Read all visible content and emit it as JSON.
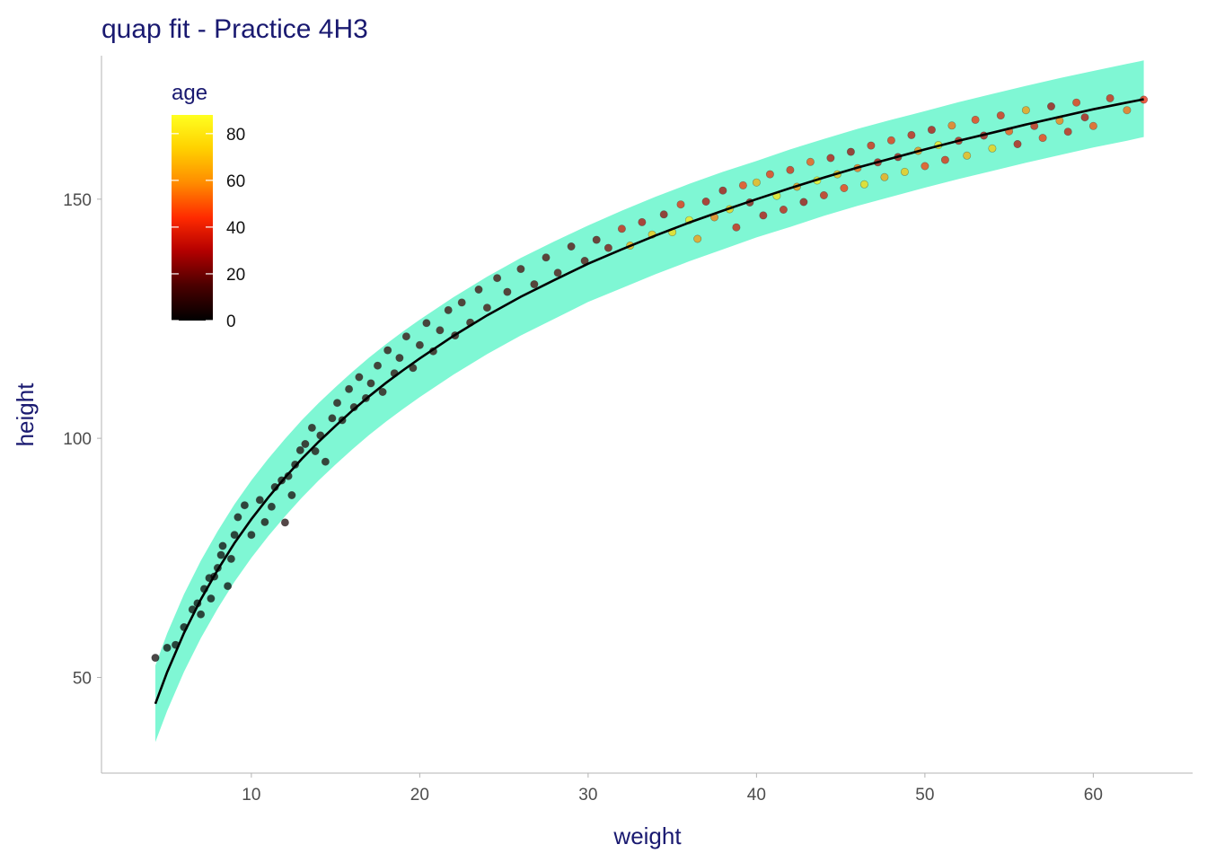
{
  "chart_data": {
    "type": "scatter",
    "title": "quap fit - Practice 4H3",
    "xlabel": "weight",
    "ylabel": "height",
    "xlim": [
      1.1,
      65.9
    ],
    "ylim": [
      30,
      180
    ],
    "xticks": [
      10,
      20,
      30,
      40,
      50,
      60
    ],
    "yticks": [
      50,
      100,
      150
    ],
    "grid": false,
    "legend": {
      "title": "age",
      "placement": "top-left",
      "ticks": [
        0,
        20,
        40,
        60,
        80
      ],
      "range": [
        0,
        88
      ],
      "gradient_colors": [
        "#000000",
        "#4a0000",
        "#b40000",
        "#ff2a00",
        "#ff8c00",
        "#ffd200",
        "#ffff20"
      ]
    },
    "band_color": "#7ff7d4",
    "line_color": "#000000",
    "fit": {
      "x": [
        4.3,
        5,
        6,
        7,
        8,
        9,
        10,
        11,
        12,
        13,
        14,
        15,
        16,
        17,
        18,
        19,
        20,
        22,
        24,
        26,
        28,
        30,
        32,
        34,
        36,
        38,
        40,
        42,
        44,
        46,
        48,
        50,
        52,
        54,
        56,
        58,
        60,
        62,
        63
      ],
      "mean": [
        44.5,
        51.1,
        59.3,
        66.3,
        72.5,
        78.1,
        83.1,
        87.6,
        91.8,
        95.7,
        99.3,
        102.6,
        105.8,
        108.8,
        111.6,
        114.2,
        116.7,
        121.4,
        125.7,
        129.6,
        133.1,
        136.5,
        139.5,
        142.4,
        145.1,
        147.6,
        150.0,
        152.3,
        154.5,
        156.6,
        158.5,
        160.4,
        162.2,
        163.9,
        165.6,
        167.2,
        168.8,
        170.2,
        170.9
      ],
      "lower": [
        36.5,
        43.0,
        51.2,
        58.2,
        64.4,
        70.0,
        75.0,
        79.5,
        83.7,
        87.6,
        91.2,
        94.5,
        97.7,
        100.7,
        103.5,
        106.1,
        108.6,
        113.3,
        117.6,
        121.5,
        125.0,
        128.5,
        131.4,
        134.3,
        137.0,
        139.5,
        142.0,
        144.2,
        146.5,
        148.6,
        150.5,
        152.4,
        154.2,
        155.9,
        157.6,
        159.2,
        160.8,
        162.2,
        163.0
      ],
      "upper": [
        52.5,
        59.2,
        67.4,
        74.4,
        80.6,
        86.2,
        91.2,
        95.7,
        99.9,
        103.8,
        107.4,
        110.7,
        113.9,
        116.9,
        119.7,
        122.3,
        124.8,
        129.5,
        133.8,
        137.7,
        141.2,
        144.5,
        147.6,
        150.5,
        153.2,
        155.7,
        158.0,
        160.4,
        162.6,
        164.7,
        166.6,
        168.4,
        170.3,
        172.0,
        173.7,
        175.3,
        176.8,
        178.3,
        179.0
      ]
    },
    "points": [
      [
        4.3,
        54.1,
        1
      ],
      [
        5,
        56.2,
        1
      ],
      [
        5.5,
        56.8,
        1
      ],
      [
        6,
        60.5,
        1
      ],
      [
        6.5,
        64.2,
        2
      ],
      [
        6.8,
        65.5,
        1
      ],
      [
        7,
        63.2,
        2
      ],
      [
        7.2,
        68.5,
        1
      ],
      [
        7.5,
        70.8,
        2
      ],
      [
        7.6,
        66.5,
        1
      ],
      [
        7.8,
        71.1,
        2
      ],
      [
        8,
        72.9,
        3
      ],
      [
        8.2,
        75.6,
        2
      ],
      [
        8.3,
        77.5,
        2
      ],
      [
        8.6,
        69.1,
        1
      ],
      [
        8.8,
        74.8,
        3
      ],
      [
        9,
        79.8,
        2
      ],
      [
        9.2,
        83.5,
        3
      ],
      [
        9.6,
        86.0,
        3
      ],
      [
        10,
        79.8,
        3
      ],
      [
        10.5,
        87.1,
        4
      ],
      [
        10.8,
        82.5,
        4
      ],
      [
        11.2,
        85.7,
        3
      ],
      [
        11.4,
        89.8,
        4
      ],
      [
        11.8,
        91.2,
        5
      ],
      [
        12,
        82.4,
        4
      ],
      [
        12.2,
        92.1,
        5
      ],
      [
        12.4,
        88.1,
        4
      ],
      [
        12.6,
        94.5,
        5
      ],
      [
        12.9,
        97.5,
        5
      ],
      [
        13.2,
        98.8,
        6
      ],
      [
        13.6,
        102.2,
        6
      ],
      [
        13.8,
        97.3,
        5
      ],
      [
        14.1,
        100.6,
        6
      ],
      [
        14.4,
        95.1,
        5
      ],
      [
        14.8,
        104.2,
        6
      ],
      [
        15.1,
        107.4,
        7
      ],
      [
        15.4,
        103.8,
        6
      ],
      [
        15.8,
        110.3,
        7
      ],
      [
        16.1,
        106.5,
        7
      ],
      [
        16.4,
        112.8,
        8
      ],
      [
        16.8,
        108.4,
        7
      ],
      [
        17.1,
        111.5,
        8
      ],
      [
        17.5,
        115.2,
        8
      ],
      [
        17.8,
        109.7,
        8
      ],
      [
        18.1,
        118.4,
        9
      ],
      [
        18.5,
        113.6,
        9
      ],
      [
        18.8,
        116.8,
        9
      ],
      [
        19.2,
        121.3,
        10
      ],
      [
        19.6,
        114.7,
        9
      ],
      [
        20,
        119.5,
        10
      ],
      [
        20.4,
        124.1,
        10
      ],
      [
        20.8,
        118.2,
        10
      ],
      [
        21.2,
        122.6,
        11
      ],
      [
        21.7,
        126.8,
        11
      ],
      [
        22.1,
        121.5,
        11
      ],
      [
        22.5,
        128.4,
        12
      ],
      [
        23,
        124.2,
        12
      ],
      [
        23.5,
        131.1,
        12
      ],
      [
        24,
        127.3,
        13
      ],
      [
        24.6,
        133.5,
        13
      ],
      [
        25.2,
        130.6,
        13
      ],
      [
        26,
        135.4,
        14
      ],
      [
        26.8,
        132.2,
        14
      ],
      [
        27.5,
        137.8,
        15
      ],
      [
        28.2,
        134.6,
        15
      ],
      [
        29,
        140.1,
        16
      ],
      [
        29.8,
        137.1,
        16
      ],
      [
        30.5,
        141.5,
        18
      ],
      [
        31.2,
        139.8,
        22
      ],
      [
        32,
        143.8,
        35
      ],
      [
        32.5,
        140.3,
        65
      ],
      [
        33.2,
        145.2,
        30
      ],
      [
        33.8,
        142.6,
        70
      ],
      [
        34.5,
        146.8,
        25
      ],
      [
        35,
        143.1,
        75
      ],
      [
        35.5,
        148.9,
        40
      ],
      [
        36,
        145.6,
        80
      ],
      [
        36.5,
        141.7,
        60
      ],
      [
        37,
        149.5,
        30
      ],
      [
        37.5,
        146.2,
        55
      ],
      [
        38,
        151.8,
        28
      ],
      [
        38.4,
        147.9,
        72
      ],
      [
        38.8,
        144.1,
        35
      ],
      [
        39.2,
        152.9,
        45
      ],
      [
        39.6,
        149.3,
        25
      ],
      [
        40,
        153.5,
        65
      ],
      [
        40.4,
        146.6,
        30
      ],
      [
        40.8,
        155.2,
        42
      ],
      [
        41.2,
        150.7,
        78
      ],
      [
        41.6,
        147.8,
        33
      ],
      [
        42,
        156.1,
        38
      ],
      [
        42.4,
        152.6,
        60
      ],
      [
        42.8,
        149.4,
        27
      ],
      [
        43.2,
        157.8,
        48
      ],
      [
        43.6,
        153.9,
        82
      ],
      [
        44,
        150.8,
        36
      ],
      [
        44.4,
        158.6,
        31
      ],
      [
        44.8,
        155.2,
        68
      ],
      [
        45.2,
        152.3,
        44
      ],
      [
        45.6,
        159.9,
        26
      ],
      [
        46,
        156.5,
        52
      ],
      [
        46.4,
        153.1,
        75
      ],
      [
        46.8,
        161.2,
        37
      ],
      [
        47.2,
        157.7,
        30
      ],
      [
        47.6,
        154.6,
        63
      ],
      [
        48,
        162.3,
        41
      ],
      [
        48.4,
        158.8,
        28
      ],
      [
        48.8,
        155.7,
        70
      ],
      [
        49.2,
        163.4,
        34
      ],
      [
        49.6,
        160.1,
        58
      ],
      [
        50,
        156.9,
        46
      ],
      [
        50.4,
        164.5,
        30
      ],
      [
        50.8,
        161.3,
        79
      ],
      [
        51.2,
        158.2,
        39
      ],
      [
        51.6,
        165.4,
        53
      ],
      [
        52,
        162.2,
        32
      ],
      [
        52.5,
        159.1,
        66
      ],
      [
        53,
        166.6,
        43
      ],
      [
        53.5,
        163.3,
        29
      ],
      [
        54,
        160.6,
        72
      ],
      [
        54.5,
        167.5,
        38
      ],
      [
        55,
        164.2,
        48
      ],
      [
        55.5,
        161.5,
        31
      ],
      [
        56,
        168.6,
        60
      ],
      [
        56.5,
        165.3,
        36
      ],
      [
        57,
        162.8,
        44
      ],
      [
        57.5,
        169.4,
        27
      ],
      [
        58,
        166.4,
        55
      ],
      [
        58.5,
        164.1,
        34
      ],
      [
        59,
        170.2,
        41
      ],
      [
        59.5,
        167.1,
        30
      ],
      [
        60,
        165.3,
        48
      ],
      [
        61,
        171.1,
        36
      ],
      [
        62,
        168.6,
        52
      ],
      [
        63,
        170.8,
        40
      ]
    ]
  }
}
